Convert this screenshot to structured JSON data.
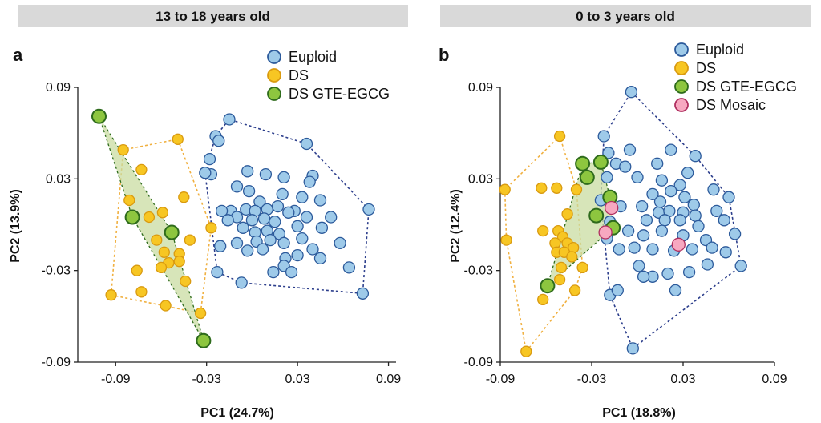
{
  "colors": {
    "euploid": "#9ecae9",
    "euploid_stroke": "#2c5a9b",
    "euploid_hull": "#2c3e8c",
    "ds": "#f7c623",
    "ds_stroke": "#d99a10",
    "ds_hull": "#f0b040",
    "gte": "#8dc63f",
    "gte_stroke": "#2e6b1c",
    "gte_fill": "#c9dca2",
    "mosaic": "#f7a8c0",
    "mosaic_stroke": "#b03060",
    "header_bg": "#d9d9d9"
  },
  "chart_data": [
    {
      "type": "scatter",
      "header": "13 to 18 years old",
      "panel_letter": "a",
      "xlabel": "PC1 (24.7%)",
      "ylabel": "PC2 (13.9%)",
      "xlim": [
        -0.115,
        0.095
      ],
      "ylim": [
        -0.09,
        0.09
      ],
      "xticks": [
        -0.09,
        -0.03,
        0.03,
        0.09
      ],
      "xtick_labels": [
        "-0.09",
        "-0.03",
        "0.03",
        "0.09"
      ],
      "yticks": [
        -0.09,
        -0.03,
        0.03,
        0.09
      ],
      "ytick_labels": [
        "-0.09",
        "-0.03",
        "0.03",
        "0.09"
      ],
      "legend_placement": "top-right",
      "series": [
        {
          "name": "Euploid",
          "key": "euploid",
          "hull": "dashed",
          "points": [
            [
              -0.015,
              0.069
            ],
            [
              -0.024,
              0.058
            ],
            [
              -0.022,
              0.055
            ],
            [
              -0.028,
              0.043
            ],
            [
              -0.027,
              0.033
            ],
            [
              -0.031,
              0.034
            ],
            [
              0.036,
              0.053
            ],
            [
              0.077,
              0.01
            ],
            [
              0.073,
              -0.045
            ],
            [
              0.064,
              -0.028
            ],
            [
              -0.023,
              -0.031
            ],
            [
              -0.003,
              0.035
            ],
            [
              0.009,
              0.033
            ],
            [
              0.021,
              0.031
            ],
            [
              0.04,
              0.032
            ],
            [
              0.038,
              0.028
            ],
            [
              -0.01,
              0.025
            ],
            [
              -0.002,
              0.022
            ],
            [
              0.02,
              0.02
            ],
            [
              0.033,
              0.018
            ],
            [
              0.045,
              0.016
            ],
            [
              0.005,
              0.015
            ],
            [
              -0.014,
              0.009
            ],
            [
              -0.004,
              0.01
            ],
            [
              0.002,
              0.009
            ],
            [
              0.01,
              0.01
            ],
            [
              0.017,
              0.012
            ],
            [
              0.028,
              0.009
            ],
            [
              0.036,
              0.005
            ],
            [
              0.052,
              0.005
            ],
            [
              -0.02,
              0.009
            ],
            [
              -0.01,
              0.005
            ],
            [
              0.0,
              0.003
            ],
            [
              0.008,
              0.004
            ],
            [
              0.015,
              0.002
            ],
            [
              0.024,
              0.008
            ],
            [
              -0.016,
              0.003
            ],
            [
              -0.006,
              -0.002
            ],
            [
              0.002,
              -0.005
            ],
            [
              0.01,
              -0.004
            ],
            [
              0.018,
              -0.006
            ],
            [
              0.03,
              -0.001
            ],
            [
              0.046,
              -0.002
            ],
            [
              -0.01,
              -0.012
            ],
            [
              0.003,
              -0.011
            ],
            [
              0.012,
              -0.01
            ],
            [
              0.021,
              -0.012
            ],
            [
              0.033,
              -0.009
            ],
            [
              -0.003,
              -0.017
            ],
            [
              0.007,
              -0.016
            ],
            [
              0.022,
              -0.022
            ],
            [
              0.03,
              -0.02
            ],
            [
              0.04,
              -0.016
            ],
            [
              -0.007,
              -0.038
            ],
            [
              0.014,
              -0.031
            ],
            [
              0.021,
              -0.027
            ],
            [
              0.026,
              -0.031
            ],
            [
              0.058,
              -0.012
            ],
            [
              0.045,
              -0.022
            ],
            [
              -0.021,
              -0.014
            ]
          ]
        },
        {
          "name": "DS",
          "key": "ds",
          "hull": "dashed",
          "points": [
            [
              -0.085,
              0.049
            ],
            [
              -0.049,
              0.056
            ],
            [
              -0.073,
              0.036
            ],
            [
              -0.045,
              0.018
            ],
            [
              -0.081,
              0.016
            ],
            [
              -0.059,
              0.008
            ],
            [
              -0.068,
              0.005
            ],
            [
              -0.041,
              -0.01
            ],
            [
              -0.048,
              -0.019
            ],
            [
              -0.058,
              -0.018
            ],
            [
              -0.055,
              -0.025
            ],
            [
              -0.06,
              -0.028
            ],
            [
              -0.044,
              -0.037
            ],
            [
              -0.076,
              -0.03
            ],
            [
              -0.093,
              -0.046
            ],
            [
              -0.073,
              -0.044
            ],
            [
              -0.057,
              -0.053
            ],
            [
              -0.034,
              -0.058
            ],
            [
              -0.048,
              -0.024
            ],
            [
              -0.063,
              -0.01
            ],
            [
              -0.027,
              -0.002
            ]
          ]
        },
        {
          "name": "DS GTE-EGCG",
          "key": "gte",
          "hull": "filled",
          "points": [
            [
              -0.101,
              0.071
            ],
            [
              -0.079,
              0.005
            ],
            [
              -0.053,
              -0.005
            ],
            [
              -0.032,
              -0.076
            ]
          ]
        }
      ]
    },
    {
      "type": "scatter",
      "header": "0 to 3 years old",
      "panel_letter": "b",
      "xlabel": "PC1 (18.8%)",
      "ylabel": "PC2 (12.4%)",
      "xlim": [
        -0.09,
        0.09
      ],
      "ylim": [
        -0.09,
        0.09
      ],
      "xticks": [
        -0.09,
        -0.03,
        0.03,
        0.09
      ],
      "xtick_labels": [
        "-0.09",
        "-0.03",
        "0.03",
        "0.09"
      ],
      "yticks": [
        -0.09,
        -0.03,
        0.03,
        0.09
      ],
      "ytick_labels": [
        "-0.09",
        "-0.03",
        "0.03",
        "0.09"
      ],
      "legend_placement": "top-right",
      "series": [
        {
          "name": "Euploid",
          "key": "euploid",
          "hull": "dashed",
          "points": [
            [
              -0.004,
              0.087
            ],
            [
              -0.022,
              0.058
            ],
            [
              -0.019,
              0.047
            ],
            [
              -0.005,
              0.049
            ],
            [
              0.022,
              0.049
            ],
            [
              0.038,
              0.045
            ],
            [
              -0.014,
              0.04
            ],
            [
              -0.008,
              0.038
            ],
            [
              0.013,
              0.04
            ],
            [
              0.033,
              0.034
            ],
            [
              -0.02,
              0.031
            ],
            [
              0.0,
              0.031
            ],
            [
              0.016,
              0.029
            ],
            [
              0.028,
              0.026
            ],
            [
              0.05,
              0.023
            ],
            [
              0.06,
              0.018
            ],
            [
              0.037,
              0.013
            ],
            [
              0.031,
              0.018
            ],
            [
              0.022,
              0.022
            ],
            [
              0.01,
              0.02
            ],
            [
              0.003,
              0.012
            ],
            [
              0.014,
              0.008
            ],
            [
              0.021,
              0.009
            ],
            [
              0.03,
              0.008
            ],
            [
              0.038,
              0.006
            ],
            [
              0.052,
              0.009
            ],
            [
              -0.024,
              0.016
            ],
            [
              -0.011,
              0.012
            ],
            [
              -0.018,
              0.002
            ],
            [
              0.006,
              0.003
            ],
            [
              0.018,
              0.003
            ],
            [
              0.028,
              0.003
            ],
            [
              0.04,
              -0.001
            ],
            [
              0.057,
              0.003
            ],
            [
              0.064,
              -0.006
            ],
            [
              -0.006,
              -0.004
            ],
            [
              0.004,
              -0.007
            ],
            [
              0.016,
              -0.004
            ],
            [
              0.03,
              -0.007
            ],
            [
              0.045,
              -0.01
            ],
            [
              -0.02,
              -0.009
            ],
            [
              -0.012,
              -0.016
            ],
            [
              -0.002,
              -0.015
            ],
            [
              0.01,
              -0.016
            ],
            [
              0.024,
              -0.017
            ],
            [
              0.036,
              -0.016
            ],
            [
              0.049,
              -0.015
            ],
            [
              0.058,
              -0.018
            ],
            [
              0.001,
              -0.027
            ],
            [
              0.01,
              -0.034
            ],
            [
              0.02,
              -0.032
            ],
            [
              0.034,
              -0.031
            ],
            [
              0.046,
              -0.026
            ],
            [
              0.068,
              -0.027
            ],
            [
              0.004,
              -0.034
            ],
            [
              0.025,
              -0.043
            ],
            [
              -0.018,
              -0.046
            ],
            [
              -0.013,
              -0.043
            ],
            [
              -0.003,
              -0.081
            ],
            [
              0.015,
              0.015
            ]
          ]
        },
        {
          "name": "DS",
          "key": "ds",
          "hull": "dashed",
          "points": [
            [
              -0.051,
              0.058
            ],
            [
              -0.087,
              0.023
            ],
            [
              -0.063,
              0.024
            ],
            [
              -0.053,
              0.024
            ],
            [
              -0.04,
              0.023
            ],
            [
              -0.046,
              0.007
            ],
            [
              -0.062,
              -0.004
            ],
            [
              -0.052,
              -0.004
            ],
            [
              -0.049,
              -0.008
            ],
            [
              -0.046,
              -0.012
            ],
            [
              -0.054,
              -0.012
            ],
            [
              -0.042,
              -0.015
            ],
            [
              -0.053,
              -0.018
            ],
            [
              -0.048,
              -0.018
            ],
            [
              -0.043,
              -0.021
            ],
            [
              -0.05,
              -0.028
            ],
            [
              -0.036,
              -0.028
            ],
            [
              -0.051,
              -0.036
            ],
            [
              -0.041,
              -0.043
            ],
            [
              -0.062,
              -0.049
            ],
            [
              -0.086,
              -0.01
            ],
            [
              -0.073,
              -0.083
            ]
          ]
        },
        {
          "name": "DS GTE-EGCG",
          "key": "gte",
          "hull": "filled",
          "points": [
            [
              -0.036,
              0.04
            ],
            [
              -0.033,
              0.031
            ],
            [
              -0.024,
              0.041
            ],
            [
              -0.018,
              0.018
            ],
            [
              -0.027,
              0.006
            ],
            [
              -0.016,
              -0.002
            ],
            [
              -0.059,
              -0.04
            ]
          ]
        },
        {
          "name": "DS Mosaic",
          "key": "mosaic",
          "hull": "none",
          "points": [
            [
              -0.017,
              0.011
            ],
            [
              -0.021,
              -0.005
            ],
            [
              0.027,
              -0.013
            ]
          ]
        }
      ]
    }
  ]
}
